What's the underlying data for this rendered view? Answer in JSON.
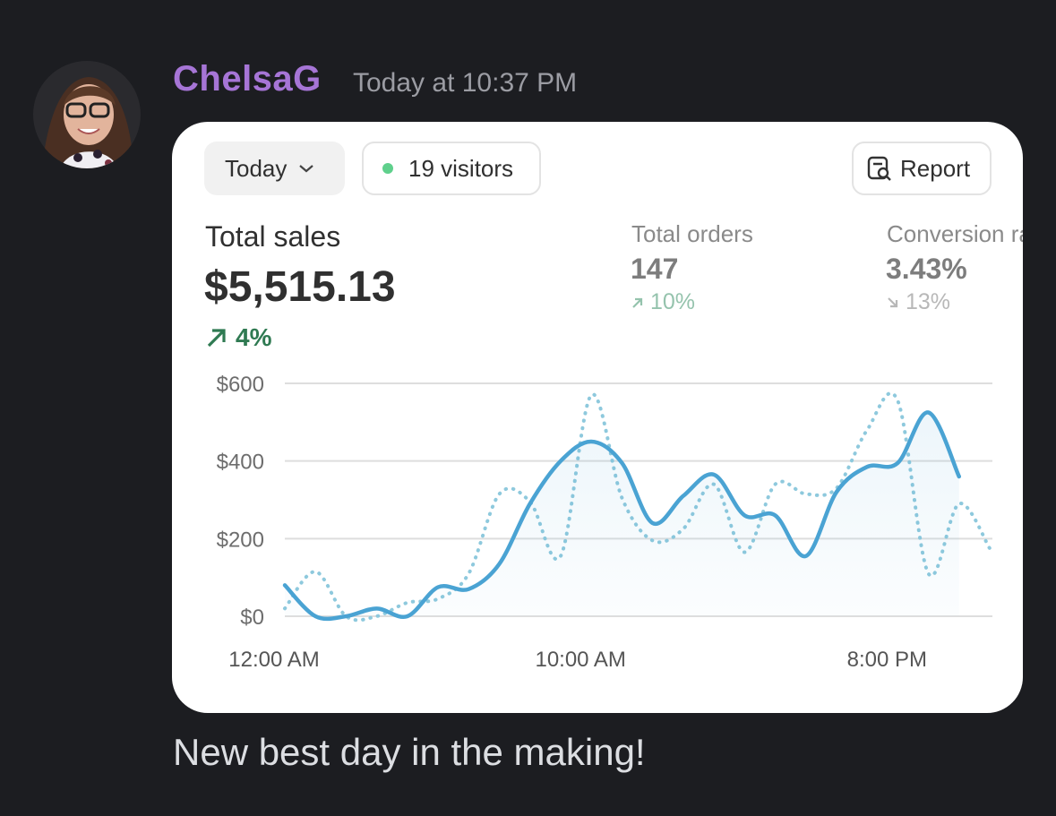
{
  "message": {
    "author": "ChelsaG",
    "timestamp": "Today at 10:37 PM",
    "text": "New best day in the making!"
  },
  "card": {
    "period": "Today",
    "visitors": "19 visitors",
    "report": "Report",
    "metrics": [
      {
        "label": "Total sales",
        "value": "$5,515.13",
        "change": "4%"
      },
      {
        "label": "Total orders",
        "value": "147",
        "change": "10%"
      },
      {
        "label": "Conversion rate",
        "value": "3.43%",
        "change": "13%"
      }
    ]
  },
  "chart_data": {
    "type": "line",
    "x": [
      0,
      1,
      2,
      3,
      4,
      5,
      6,
      7,
      8,
      9,
      10,
      11,
      12,
      13,
      14,
      15,
      16,
      17,
      18,
      19,
      20,
      21,
      22,
      23
    ],
    "series": [
      {
        "color": "#4aa3d3",
        "style": "solid",
        "fill": true,
        "values": [
          80,
          0,
          0,
          20,
          0,
          75,
          70,
          135,
          290,
          400,
          450,
          395,
          240,
          310,
          365,
          260,
          260,
          155,
          320,
          385,
          395,
          525,
          360,
          null
        ]
      },
      {
        "color": "#8ec9dd",
        "style": "dotted",
        "values": [
          20,
          115,
          0,
          0,
          35,
          45,
          110,
          315,
          295,
          155,
          570,
          305,
          195,
          225,
          340,
          165,
          340,
          315,
          330,
          480,
          555,
          110,
          290,
          175
        ]
      }
    ],
    "xlim": [
      0,
      23
    ],
    "xticks": [
      {
        "value": 0,
        "label": "12:00 AM"
      },
      {
        "value": 10,
        "label": "10:00 AM"
      },
      {
        "value": 20,
        "label": "8:00 PM"
      }
    ],
    "ylim": [
      0,
      600
    ],
    "yticks": [
      {
        "value": 0,
        "label": "$0"
      },
      {
        "value": 200,
        "label": "$200"
      },
      {
        "value": 400,
        "label": "$400"
      },
      {
        "value": 600,
        "label": "$600"
      }
    ],
    "grid": true
  }
}
